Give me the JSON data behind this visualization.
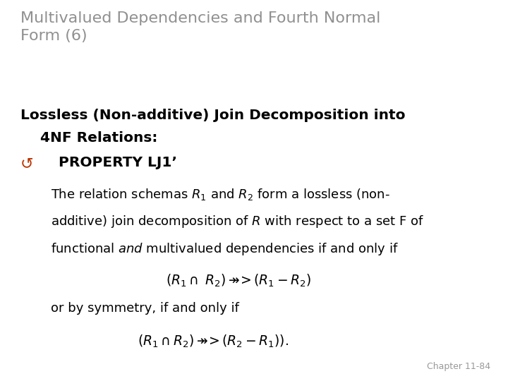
{
  "bg_color": "#e8e8e8",
  "slide_bg": "#ffffff",
  "title_text": "Multivalued Dependencies and Fourth Normal\nForm (6)",
  "title_color": "#909090",
  "title_fontsize": 16,
  "heading_line1": "Lossless (Non-additive) Join Decomposition into",
  "heading_line2": "    4NF Relations:",
  "heading_color": "#000000",
  "heading_fontsize": 14.5,
  "bullet_color": "#bb3300",
  "property_text": "PROPERTY LJ1’",
  "property_fontsize": 14.5,
  "body_fontsize": 13,
  "chapter_text": "Chapter 11-84",
  "chapter_fontsize": 9,
  "chapter_color": "#999999"
}
